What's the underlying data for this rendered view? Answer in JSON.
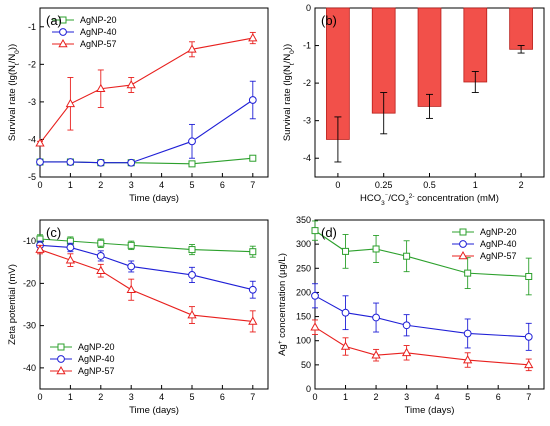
{
  "colors": {
    "green": "#2ca02c",
    "blue": "#1f1fd6",
    "red": "#e8201e",
    "bar_fill": "#f2504a",
    "bar_stroke": "#b81c18"
  },
  "chart_data": [
    {
      "panel": "(a)",
      "type": "line",
      "xlabel": "Time (days)",
      "ylabel": "Survival rate (lg(Nₜ/N₀))",
      "ylabel_parts": [
        "Survival rate (lg(N",
        "t",
        "/N",
        "0",
        "))"
      ],
      "xlim": [
        0,
        7.5
      ],
      "ylim": [
        -5,
        -0.5
      ],
      "xticks": [
        0,
        1,
        2,
        3,
        4,
        5,
        6,
        7
      ],
      "yticks": [
        -5,
        -4,
        -3,
        -2,
        -1
      ],
      "legend_position": "top-left",
      "series": [
        {
          "name": "AgNP-20",
          "marker": "square",
          "color": "#2ca02c",
          "x": [
            0,
            1,
            2,
            3,
            5,
            7
          ],
          "y": [
            -4.6,
            -4.6,
            -4.62,
            -4.62,
            -4.65,
            -4.5
          ],
          "err": [
            0.04,
            0.04,
            0.04,
            0.04,
            0.04,
            0.04
          ]
        },
        {
          "name": "AgNP-40",
          "marker": "circle",
          "color": "#1f1fd6",
          "x": [
            0,
            1,
            2,
            3,
            5,
            7
          ],
          "y": [
            -4.6,
            -4.6,
            -4.62,
            -4.62,
            -4.05,
            -2.95
          ],
          "err": [
            0.05,
            0.05,
            0.05,
            0.05,
            0.45,
            0.5
          ]
        },
        {
          "name": "AgNP-57",
          "marker": "triangle",
          "color": "#e8201e",
          "x": [
            0,
            1,
            2,
            3,
            5,
            7
          ],
          "y": [
            -4.1,
            -3.05,
            -2.65,
            -2.55,
            -1.6,
            -1.3
          ],
          "err": [
            0.05,
            0.7,
            0.5,
            0.2,
            0.2,
            0.15
          ]
        }
      ]
    },
    {
      "panel": "(b)",
      "type": "bar",
      "xlabel_parts": [
        "HCO",
        "3",
        "⁻",
        "/CO",
        "3",
        "2-",
        " concentration (mM)"
      ],
      "xlabel": "HCO₃⁻/CO₃²⁻ concentration (mM)",
      "ylabel": "Survival rate (lg(Nₜ/N₀))",
      "ylabel_parts": [
        "Survival rate (lg(N",
        "t",
        "/N",
        "0",
        "))"
      ],
      "ylim": [
        -4.5,
        0
      ],
      "yticks": [
        -4,
        -3,
        -2,
        -1,
        0
      ],
      "categories": [
        "0",
        "0.25",
        "0.5",
        "1",
        "2"
      ],
      "values": [
        -3.5,
        -2.8,
        -2.62,
        -1.97,
        -1.1
      ],
      "err": [
        0.6,
        0.55,
        0.32,
        0.28,
        0.1
      ]
    },
    {
      "panel": "(c)",
      "type": "line",
      "xlabel": "Time (days)",
      "ylabel": "Zeta potential (mV)",
      "xlim": [
        0,
        7.5
      ],
      "ylim": [
        -45,
        -5
      ],
      "xticks": [
        0,
        1,
        2,
        3,
        4,
        5,
        6,
        7
      ],
      "yticks": [
        -40,
        -30,
        -20,
        -10
      ],
      "legend_position": "bottom-left",
      "series": [
        {
          "name": "AgNP-20",
          "marker": "square",
          "color": "#2ca02c",
          "x": [
            0,
            1,
            2,
            3,
            5,
            7
          ],
          "y": [
            -9.5,
            -10,
            -10.5,
            -11,
            -12,
            -12.5
          ],
          "err": [
            1,
            1,
            1,
            1,
            1.2,
            1.3
          ]
        },
        {
          "name": "AgNP-40",
          "marker": "circle",
          "color": "#1f1fd6",
          "x": [
            0,
            1,
            2,
            3,
            5,
            7
          ],
          "y": [
            -11,
            -11.5,
            -13.5,
            -16,
            -18,
            -21.5
          ],
          "err": [
            1,
            1,
            1.2,
            1.3,
            1.8,
            2
          ]
        },
        {
          "name": "AgNP-57",
          "marker": "triangle",
          "color": "#e8201e",
          "x": [
            0,
            1,
            2,
            3,
            5,
            7
          ],
          "y": [
            -12,
            -14.5,
            -17,
            -21.5,
            -27.5,
            -29
          ],
          "err": [
            1,
            1.5,
            1.5,
            2.5,
            2,
            2.5
          ]
        }
      ]
    },
    {
      "panel": "(d)",
      "type": "line",
      "xlabel": "Time (days)",
      "ylabel": "Ag⁺ concentration (μg/L)",
      "ylabel_parts": [
        "Ag",
        "+",
        " concentration (μg/L)"
      ],
      "xlim": [
        0,
        7.5
      ],
      "ylim": [
        0,
        350
      ],
      "xticks": [
        0,
        1,
        2,
        3,
        4,
        5,
        6,
        7
      ],
      "yticks": [
        0,
        50,
        100,
        150,
        200,
        250,
        300,
        350
      ],
      "legend_position": "top-right",
      "series": [
        {
          "name": "AgNP-20",
          "marker": "square",
          "color": "#2ca02c",
          "x": [
            0,
            1,
            2,
            3,
            5,
            7
          ],
          "y": [
            328,
            285,
            290,
            275,
            240,
            233
          ],
          "err": [
            20,
            35,
            28,
            32,
            32,
            38
          ]
        },
        {
          "name": "AgNP-40",
          "marker": "circle",
          "color": "#1f1fd6",
          "x": [
            0,
            1,
            2,
            3,
            5,
            7
          ],
          "y": [
            193,
            158,
            148,
            132,
            115,
            108
          ],
          "err": [
            25,
            35,
            30,
            22,
            30,
            28
          ]
        },
        {
          "name": "AgNP-57",
          "marker": "triangle",
          "color": "#e8201e",
          "x": [
            0,
            1,
            2,
            3,
            5,
            7
          ],
          "y": [
            128,
            88,
            70,
            75,
            60,
            50
          ],
          "err": [
            15,
            18,
            12,
            15,
            15,
            12
          ]
        }
      ]
    }
  ]
}
